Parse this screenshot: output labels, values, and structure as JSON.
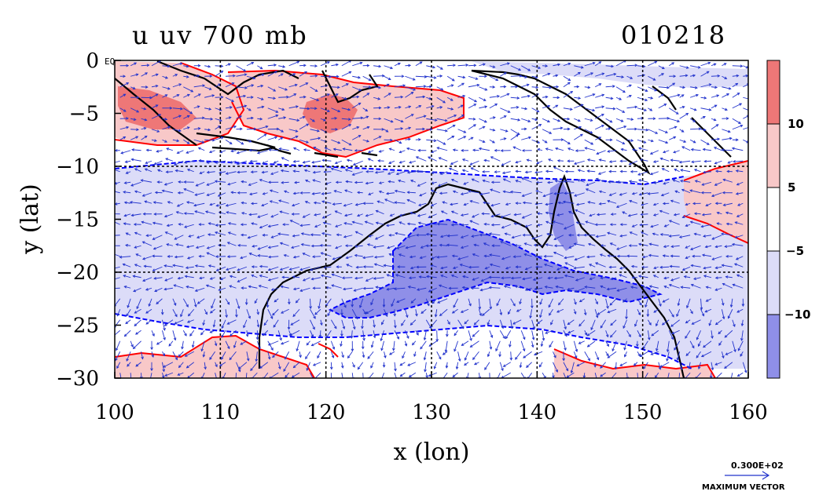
{
  "header": {
    "title": "u uv 700 mb",
    "date_code": "010218"
  },
  "map": {
    "x_axis_label": "x (lon)",
    "y_axis_label": "y (lat)",
    "x_ticks": [
      "100",
      "110",
      "120",
      "130",
      "140",
      "150",
      "160"
    ],
    "y_ticks": [
      "0",
      "−5",
      "−10",
      "−15",
      "−20",
      "−25",
      "−30"
    ],
    "x_range": [
      100,
      160
    ],
    "y_range": [
      -30,
      0
    ],
    "gridlines": "dashed at 10° lon / 10° lat",
    "corner_marker": "EQ"
  },
  "colorbar": {
    "labels": [
      "10",
      "5",
      "−5",
      "−10"
    ],
    "colors": {
      "strong_positive": "#ee7777",
      "weak_positive": "#f8c8c8",
      "neutral": "#ffffff",
      "weak_negative": "#dcdcf8",
      "strong_negative": "#8f8fe8"
    }
  },
  "vector_key": {
    "value": "0.300E+02",
    "caption": "MAXIMUM VECTOR"
  },
  "colors": {
    "contour_positive": "#ff0000",
    "contour_negative": "#0000ff",
    "coastline": "#000000",
    "vector": "#2233cc"
  }
}
